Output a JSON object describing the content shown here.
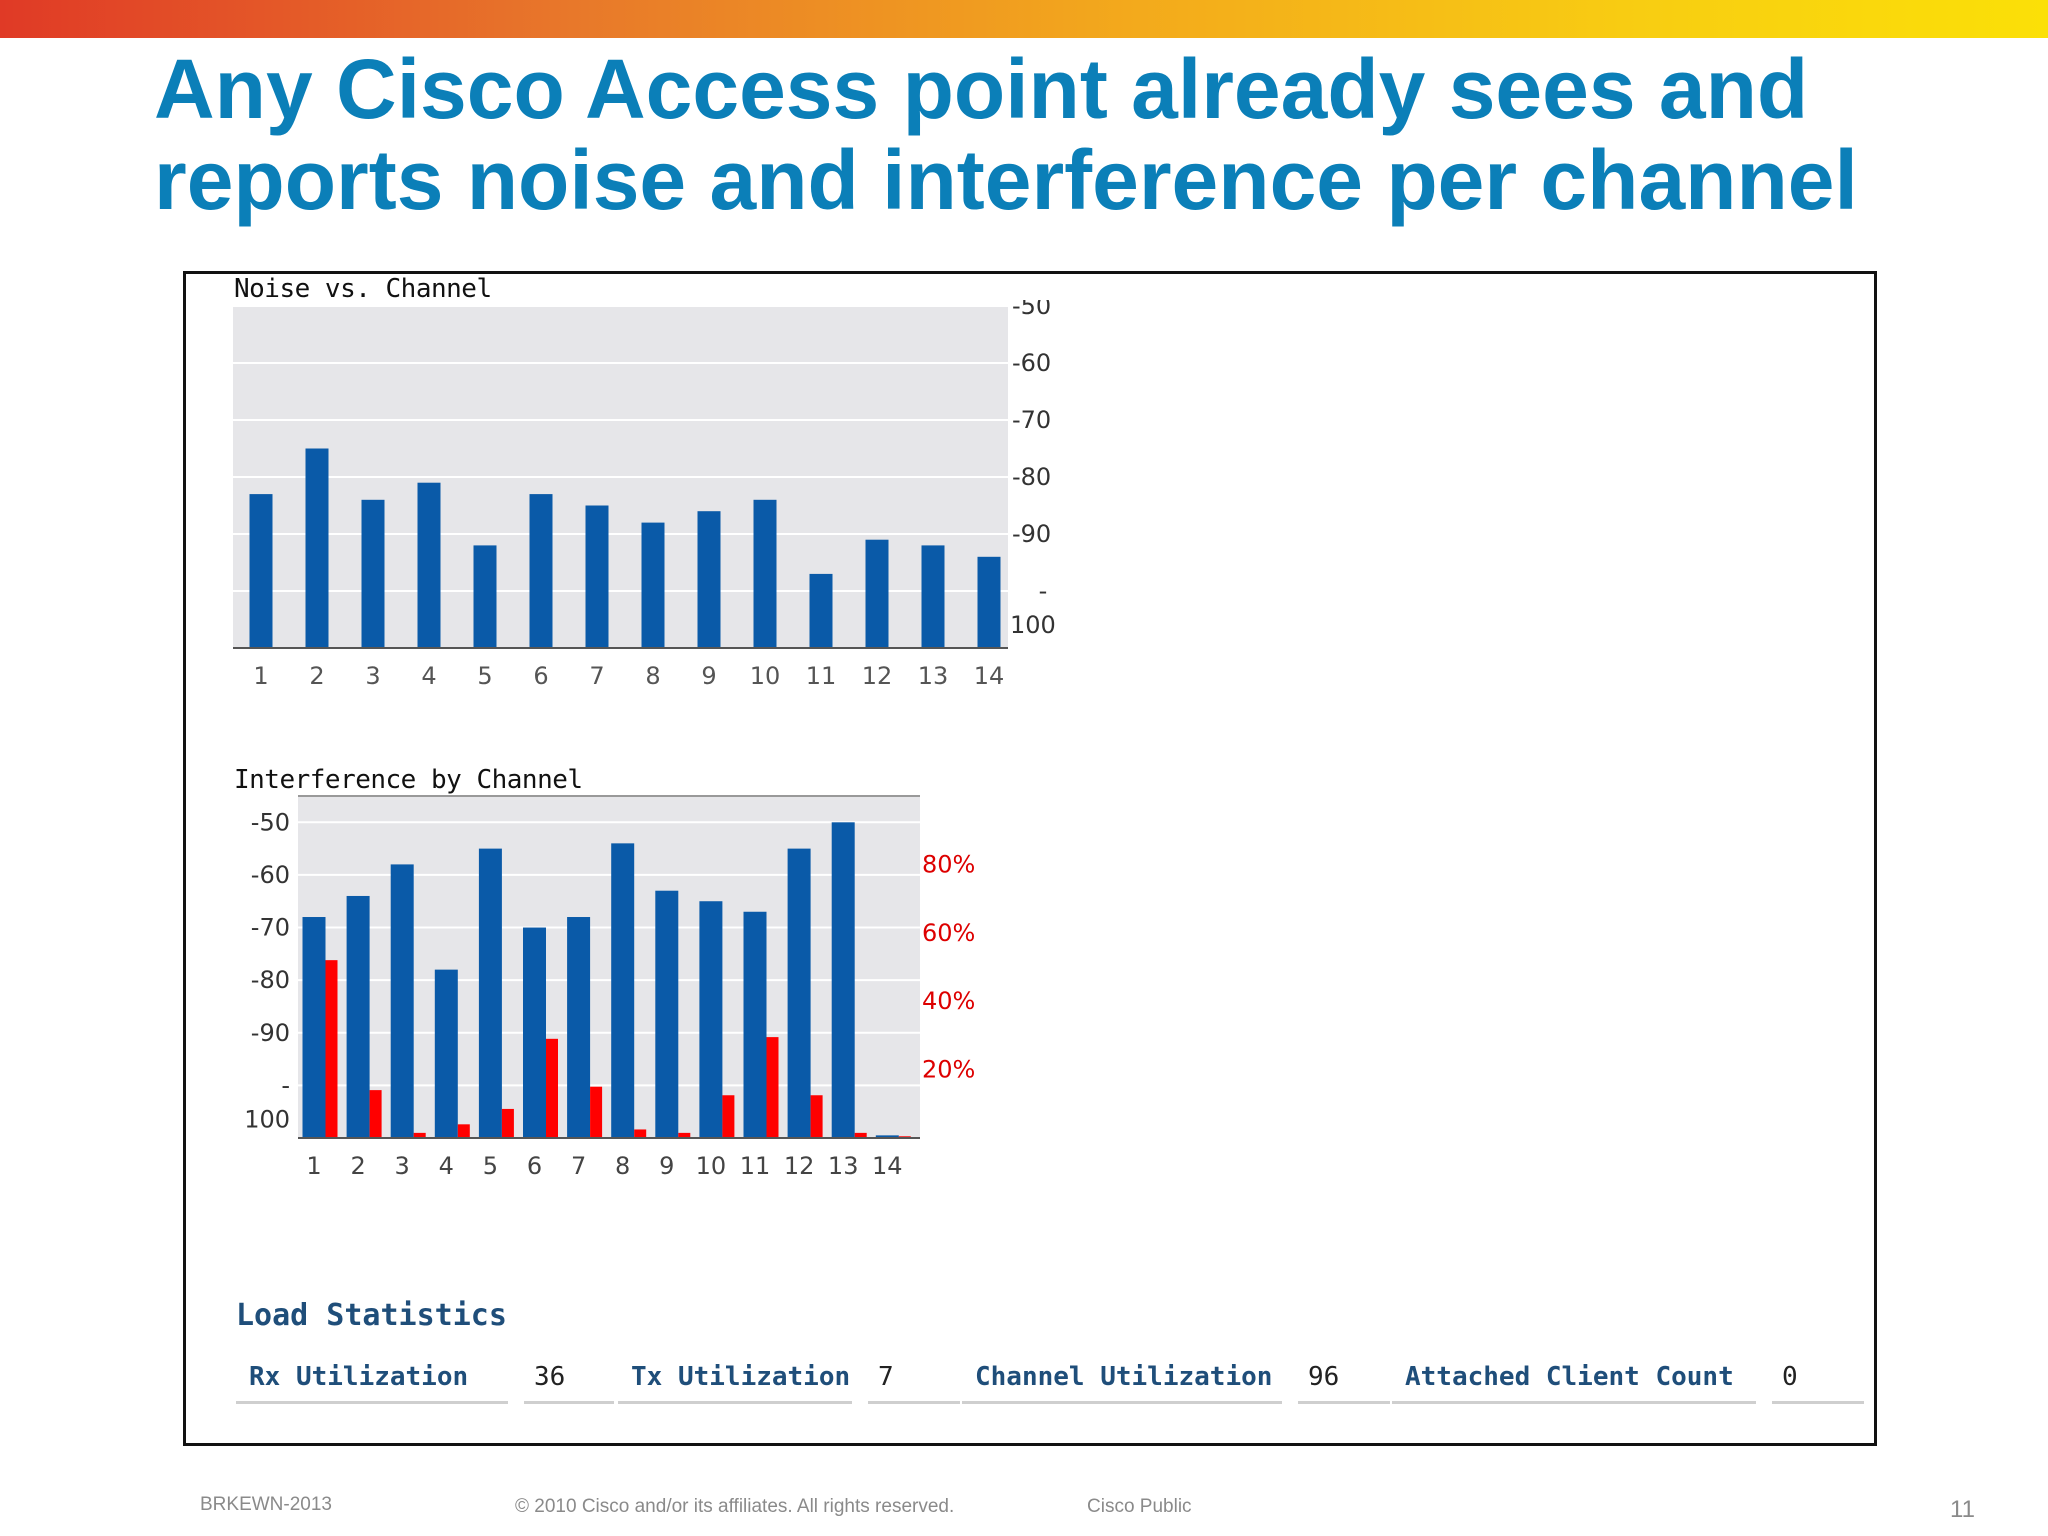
{
  "slide": {
    "title_line1": "Any Cisco Access point already sees and",
    "title_line2": "reports noise and interference per channel"
  },
  "chart_data": [
    {
      "type": "bar",
      "title": "Noise vs. Channel",
      "categories": [
        "1",
        "2",
        "3",
        "4",
        "5",
        "6",
        "7",
        "8",
        "9",
        "10",
        "11",
        "12",
        "13",
        "14"
      ],
      "y_ticks": [
        "-50",
        "-60",
        "-70",
        "-80",
        "-90",
        "-100"
      ],
      "ylim": [
        -110,
        -50
      ],
      "series": [
        {
          "values": [
            -83,
            -75,
            -84,
            -81,
            -92,
            -83,
            -85,
            -88,
            -86,
            -84,
            -97,
            -91,
            -92,
            -94
          ],
          "color": "#0a5aa8"
        }
      ]
    },
    {
      "type": "bar",
      "title": "Interference by Channel",
      "categories": [
        "1",
        "2",
        "3",
        "4",
        "5",
        "6",
        "7",
        "8",
        "9",
        "10",
        "11",
        "12",
        "13",
        "14"
      ],
      "y_ticks": [
        "-50",
        "-60",
        "-70",
        "-80",
        "-90",
        "-100"
      ],
      "ylim": [
        -110,
        -45
      ],
      "y2_ticks": [
        "80%",
        "60%",
        "40%",
        "20%"
      ],
      "y2lim": [
        0,
        100
      ],
      "series": [
        {
          "values": [
            -68,
            -64,
            -58,
            -78,
            -55,
            -70,
            -68,
            -54,
            -63,
            -65,
            -67,
            -55,
            -50,
            -109.5
          ],
          "color": "#0a5aa8"
        },
        {
          "values": [
            52,
            14,
            1.5,
            4,
            8.5,
            29,
            15,
            2.5,
            1.5,
            12.5,
            29.5,
            12.5,
            1.5,
            0.5
          ],
          "color": "#ff0000",
          "axis": "right"
        }
      ]
    }
  ],
  "load_statistics": {
    "title": "Load Statistics",
    "rx_label": "Rx Utilization",
    "rx_value": "36",
    "tx_label": "Tx Utilization",
    "tx_value": "7",
    "channel_label": "Channel Utilization",
    "channel_value": "96",
    "clients_label": "Attached Client Count",
    "clients_value": "0"
  },
  "footer": {
    "session": "BRKEWN-2013",
    "copyright": "© 2010 Cisco and/or its affiliates. All rights reserved.",
    "classification": "Cisco Public",
    "page": "11"
  },
  "colors": {
    "title": "#0b7fb8",
    "bar_blue": "#0a5aa8",
    "bar_red": "#ff0000",
    "pct_labels": "#dd0000",
    "load_labels": "#1f4e7a"
  }
}
